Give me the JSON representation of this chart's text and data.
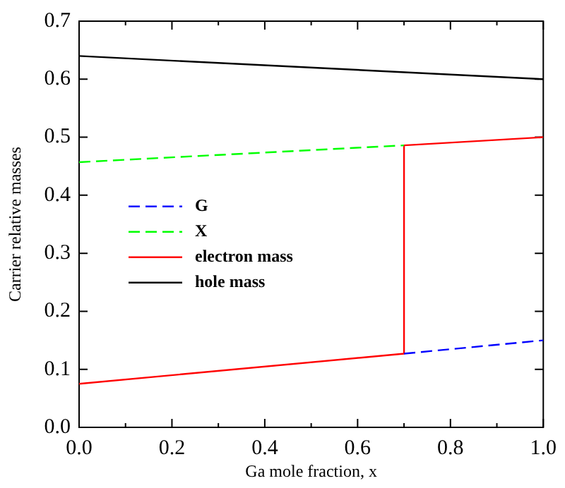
{
  "chart_data": {
    "type": "line",
    "xlabel": "Ga mole fraction, x",
    "ylabel": "Carrier relative masses",
    "xlim": [
      0,
      1
    ],
    "ylim": [
      0,
      0.7
    ],
    "xticks": [
      {
        "value": 0,
        "label": "0.0"
      },
      {
        "value": 0.1,
        "label": null
      },
      {
        "value": 0.2,
        "label": "0.2"
      },
      {
        "value": 0.3,
        "label": null
      },
      {
        "value": 0.4,
        "label": "0.4"
      },
      {
        "value": 0.5,
        "label": null
      },
      {
        "value": 0.6,
        "label": "0.6"
      },
      {
        "value": 0.7,
        "label": null
      },
      {
        "value": 0.8,
        "label": "0.8"
      },
      {
        "value": 0.9,
        "label": null
      },
      {
        "value": 1,
        "label": "1.0"
      }
    ],
    "yticks": [
      {
        "value": 0,
        "label": "0.0"
      },
      0.1,
      0.2,
      0.3,
      0.4,
      0.5,
      0.6,
      0.7
    ],
    "grid": false,
    "legend": "center left",
    "marker": "none",
    "series": [
      {
        "name": "G",
        "color": "#0000ff",
        "line_style": "dashed",
        "x": [
          0.7,
          1
        ],
        "values": [
          0.127,
          0.15
        ]
      },
      {
        "name": "X",
        "color": "#00ff00",
        "line_style": "dashed",
        "x": [
          0,
          0.7
        ],
        "values": [
          0.457,
          0.486
        ]
      },
      {
        "name": "electron mass",
        "color": "#ff0000",
        "line_style": "solid",
        "x": [
          0,
          0.7,
          0.7,
          1
        ],
        "values": [
          0.075,
          0.127,
          0.486,
          0.5
        ]
      },
      {
        "name": "hole mass",
        "color": "#000000",
        "line_style": "solid",
        "x": [
          0,
          1
        ],
        "values": [
          0.64,
          0.6
        ]
      }
    ]
  }
}
